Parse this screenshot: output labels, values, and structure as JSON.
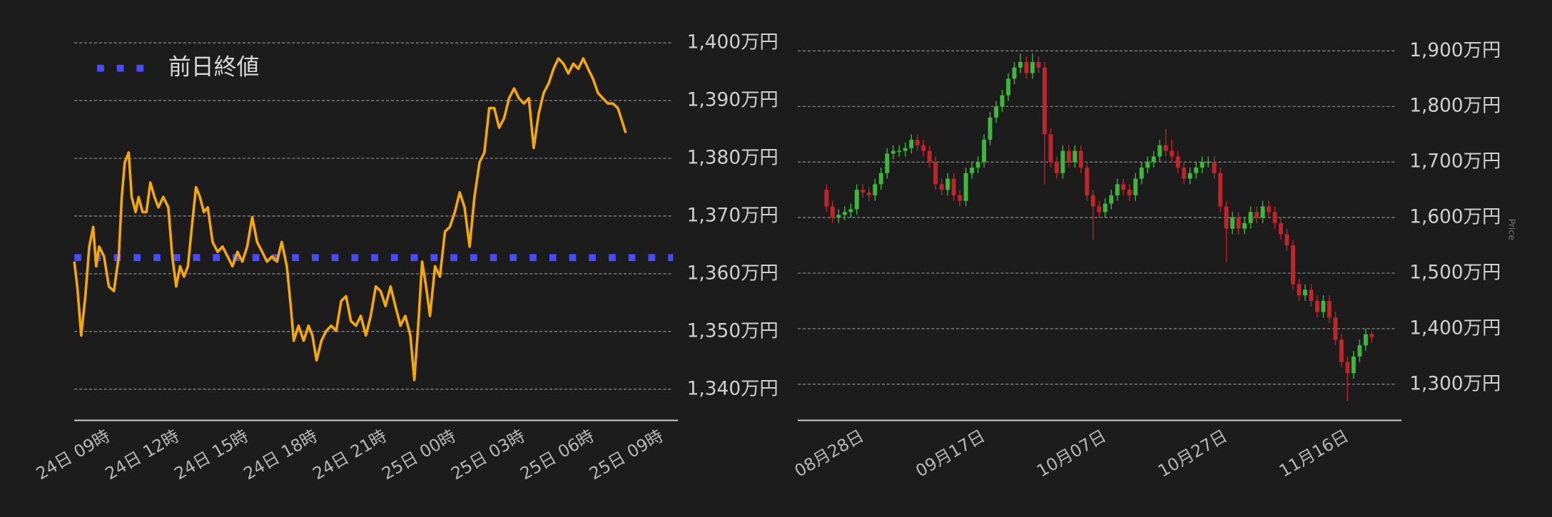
{
  "chart_data": [
    {
      "type": "line",
      "color": "#f5a800",
      "x": [
        7.71,
        7.84,
        8.01,
        8.19,
        8.36,
        8.53,
        8.66,
        8.79,
        9.0,
        9.21,
        9.43,
        9.64,
        9.77,
        9.9,
        10.07,
        10.2,
        10.37,
        10.5,
        10.67,
        10.84,
        11.01,
        11.19,
        11.36,
        11.57,
        11.79,
        11.96,
        12.13,
        12.3,
        12.47,
        12.64,
        12.81,
        12.99,
        13.16,
        13.33,
        13.5,
        13.71,
        13.93,
        14.14,
        14.36,
        14.57,
        14.79,
        15.0,
        15.21,
        15.43,
        15.64,
        15.86,
        16.07,
        16.29,
        16.5,
        16.71,
        16.93,
        17.1,
        17.23,
        17.44,
        17.66,
        17.87,
        18.04,
        18.22,
        18.43,
        18.64,
        18.86,
        19.07,
        19.29,
        19.5,
        19.71,
        19.93,
        20.14,
        20.36,
        20.57,
        20.79,
        21.0,
        21.21,
        21.43,
        21.64,
        21.86,
        22.07,
        22.29,
        22.46,
        22.63,
        22.8,
        22.97,
        23.14,
        23.36,
        23.57,
        23.79,
        24.0,
        24.22,
        24.43,
        24.64,
        24.86,
        25.07,
        25.29,
        25.5,
        25.71,
        25.93,
        26.14,
        26.36,
        26.57,
        26.79,
        27.0,
        27.21,
        27.43,
        27.64,
        27.86,
        28.07,
        28.29,
        28.5,
        28.71,
        28.93,
        29.14,
        29.36,
        29.57,
        29.79,
        30.0,
        30.21,
        30.43,
        30.64,
        30.86,
        31.07,
        31.29,
        31.5,
        31.63
      ],
      "values": [
        1362.1,
        1357.8,
        1349.3,
        1356.1,
        1364.7,
        1368.1,
        1361.3,
        1364.7,
        1363.0,
        1357.8,
        1357.0,
        1363.0,
        1373.3,
        1379.3,
        1381.0,
        1373.3,
        1370.7,
        1373.3,
        1370.7,
        1370.7,
        1375.8,
        1373.3,
        1371.5,
        1373.3,
        1371.5,
        1363.0,
        1357.8,
        1361.3,
        1359.5,
        1361.3,
        1368.1,
        1375.0,
        1373.3,
        1370.7,
        1371.5,
        1365.5,
        1363.8,
        1364.7,
        1363.0,
        1361.3,
        1363.8,
        1362.1,
        1364.7,
        1369.8,
        1365.5,
        1363.8,
        1362.1,
        1363.0,
        1362.1,
        1365.5,
        1361.3,
        1354.4,
        1348.4,
        1351.0,
        1348.4,
        1351.0,
        1349.3,
        1345.0,
        1348.4,
        1350.1,
        1351.0,
        1350.1,
        1355.3,
        1356.1,
        1351.8,
        1351.0,
        1352.7,
        1349.3,
        1352.7,
        1357.8,
        1357.0,
        1354.4,
        1357.8,
        1354.4,
        1351.0,
        1352.7,
        1349.3,
        1341.6,
        1351.0,
        1362.1,
        1357.8,
        1352.7,
        1361.3,
        1359.5,
        1367.3,
        1368.1,
        1370.7,
        1374.1,
        1371.5,
        1364.7,
        1373.3,
        1379.3,
        1381.0,
        1388.7,
        1388.7,
        1385.3,
        1387.0,
        1390.4,
        1392.1,
        1390.4,
        1389.5,
        1390.4,
        1381.8,
        1387.8,
        1391.3,
        1393.0,
        1395.5,
        1397.3,
        1396.4,
        1394.7,
        1396.4,
        1395.5,
        1397.3,
        1395.5,
        1393.8,
        1391.3,
        1390.4,
        1389.5,
        1389.5,
        1388.7,
        1386.1,
        1384.4
      ],
      "reference_line": {
        "name": "前日終値",
        "value": 1362.8,
        "color": "#4a4aff"
      },
      "legend": "upper left",
      "grid": true,
      "xlim": [
        7.71,
        33.9
      ],
      "xticks": [
        {
          "value": 9,
          "label": "24日 09時"
        },
        {
          "value": 12,
          "label": "24日 12時"
        },
        {
          "value": 15,
          "label": "24日 15時"
        },
        {
          "value": 18,
          "label": "24日 18時"
        },
        {
          "value": 21,
          "label": "24日 21時"
        },
        {
          "value": 24,
          "label": "25日 00時"
        },
        {
          "value": 27,
          "label": "25日 03時"
        },
        {
          "value": 30,
          "label": "25日 06時"
        },
        {
          "value": 33,
          "label": "25日 09時"
        }
      ],
      "ylim": [
        1334.6,
        1400.4
      ],
      "yticks": [
        {
          "value": 1340,
          "label": "1,340万円"
        },
        {
          "value": 1350,
          "label": "1,350万円"
        },
        {
          "value": 1360,
          "label": "1,360万円"
        },
        {
          "value": 1370,
          "label": "1,370万円"
        },
        {
          "value": 1380,
          "label": "1,380万円"
        },
        {
          "value": 1390,
          "label": "1,390万円"
        },
        {
          "value": 1400,
          "label": "1,400万円"
        }
      ]
    },
    {
      "type": "candlestick",
      "ylabel": "Price",
      "up_color": "#3cb83c",
      "down_color": "#c0242c",
      "grid": true,
      "categories": [
        null,
        null,
        null,
        null,
        null,
        "08月28日",
        null,
        null,
        null,
        null,
        null,
        null,
        null,
        null,
        null,
        null,
        null,
        null,
        null,
        null,
        null,
        null,
        null,
        null,
        null,
        "09月17日",
        null,
        null,
        null,
        null,
        null,
        null,
        null,
        null,
        null,
        null,
        null,
        null,
        null,
        null,
        null,
        null,
        null,
        null,
        null,
        "10月07日",
        null,
        null,
        null,
        null,
        null,
        null,
        null,
        null,
        null,
        null,
        null,
        null,
        null,
        null,
        null,
        null,
        null,
        null,
        null,
        "10月27日",
        null,
        null,
        null,
        null,
        null,
        null,
        null,
        null,
        null,
        null,
        null,
        null,
        null,
        null,
        null,
        null,
        null,
        null,
        null,
        "11月16日",
        null,
        null,
        null,
        null,
        null
      ],
      "open": [
        1650,
        1620,
        1600,
        1605,
        1610,
        1615,
        1650,
        1645,
        1640,
        1660,
        1680,
        1715,
        1720,
        1720,
        1725,
        1740,
        1730,
        1720,
        1700,
        1660,
        1650,
        1670,
        1640,
        1630,
        1680,
        1690,
        1700,
        1740,
        1780,
        1800,
        1820,
        1850,
        1870,
        1880,
        1860,
        1880,
        1870,
        1750,
        1700,
        1680,
        1720,
        1700,
        1720,
        1690,
        1640,
        1620,
        1610,
        1625,
        1640,
        1660,
        1650,
        1640,
        1670,
        1690,
        1700,
        1710,
        1730,
        1720,
        1710,
        1690,
        1670,
        1680,
        1690,
        1700,
        1700,
        1680,
        1620,
        1580,
        1600,
        1580,
        1590,
        1610,
        1600,
        1620,
        1610,
        1590,
        1570,
        1550,
        1480,
        1460,
        1470,
        1450,
        1430,
        1450,
        1420,
        1380,
        1340,
        1320,
        1350,
        1370,
        1390
      ],
      "high": [
        1660,
        1630,
        1615,
        1620,
        1625,
        1660,
        1660,
        1655,
        1670,
        1690,
        1725,
        1730,
        1730,
        1735,
        1750,
        1750,
        1740,
        1730,
        1710,
        1670,
        1680,
        1680,
        1650,
        1690,
        1700,
        1710,
        1750,
        1790,
        1810,
        1830,
        1860,
        1880,
        1895,
        1890,
        1895,
        1890,
        1880,
        1760,
        1710,
        1730,
        1730,
        1730,
        1730,
        1700,
        1650,
        1630,
        1635,
        1650,
        1670,
        1670,
        1660,
        1680,
        1700,
        1710,
        1720,
        1740,
        1760,
        1740,
        1720,
        1700,
        1690,
        1700,
        1710,
        1710,
        1710,
        1690,
        1630,
        1610,
        1610,
        1600,
        1620,
        1620,
        1630,
        1630,
        1620,
        1600,
        1580,
        1560,
        1490,
        1480,
        1480,
        1460,
        1460,
        1460,
        1430,
        1390,
        1350,
        1360,
        1380,
        1400,
        1395
      ],
      "low": [
        1610,
        1590,
        1590,
        1595,
        1600,
        1605,
        1635,
        1630,
        1630,
        1650,
        1670,
        1705,
        1710,
        1710,
        1715,
        1720,
        1710,
        1690,
        1650,
        1640,
        1640,
        1630,
        1620,
        1620,
        1670,
        1680,
        1690,
        1730,
        1770,
        1790,
        1810,
        1840,
        1860,
        1850,
        1850,
        1860,
        1660,
        1690,
        1670,
        1670,
        1690,
        1690,
        1680,
        1630,
        1560,
        1600,
        1600,
        1615,
        1630,
        1640,
        1630,
        1630,
        1660,
        1680,
        1690,
        1700,
        1710,
        1700,
        1680,
        1660,
        1660,
        1670,
        1680,
        1690,
        1670,
        1610,
        1520,
        1570,
        1570,
        1570,
        1580,
        1590,
        1590,
        1600,
        1580,
        1560,
        1540,
        1470,
        1450,
        1450,
        1440,
        1420,
        1420,
        1410,
        1370,
        1330,
        1270,
        1310,
        1340,
        1360,
        1375
      ],
      "close": [
        1620,
        1600,
        1605,
        1610,
        1615,
        1650,
        1645,
        1640,
        1660,
        1680,
        1715,
        1720,
        1720,
        1725,
        1740,
        1730,
        1720,
        1700,
        1660,
        1650,
        1670,
        1640,
        1630,
        1680,
        1690,
        1700,
        1740,
        1780,
        1800,
        1820,
        1850,
        1870,
        1880,
        1860,
        1880,
        1870,
        1750,
        1700,
        1680,
        1720,
        1700,
        1720,
        1690,
        1640,
        1620,
        1610,
        1625,
        1640,
        1660,
        1650,
        1640,
        1670,
        1690,
        1700,
        1710,
        1730,
        1720,
        1710,
        1690,
        1670,
        1680,
        1690,
        1700,
        1700,
        1680,
        1620,
        1580,
        1600,
        1580,
        1590,
        1610,
        1600,
        1620,
        1610,
        1590,
        1570,
        1550,
        1480,
        1460,
        1470,
        1450,
        1430,
        1450,
        1420,
        1380,
        1340,
        1320,
        1350,
        1370,
        1390,
        1385
      ],
      "ylim": [
        1235,
        1915
      ],
      "yticks": [
        {
          "value": 1300,
          "label": "1,300万円"
        },
        {
          "value": 1400,
          "label": "1,400万円"
        },
        {
          "value": 1500,
          "label": "1,500万円"
        },
        {
          "value": 1600,
          "label": "1,600万円"
        },
        {
          "value": 1700,
          "label": "1,700万円"
        },
        {
          "value": 1800,
          "label": "1,800万円"
        },
        {
          "value": 1900,
          "label": "1,900万円"
        }
      ]
    }
  ]
}
